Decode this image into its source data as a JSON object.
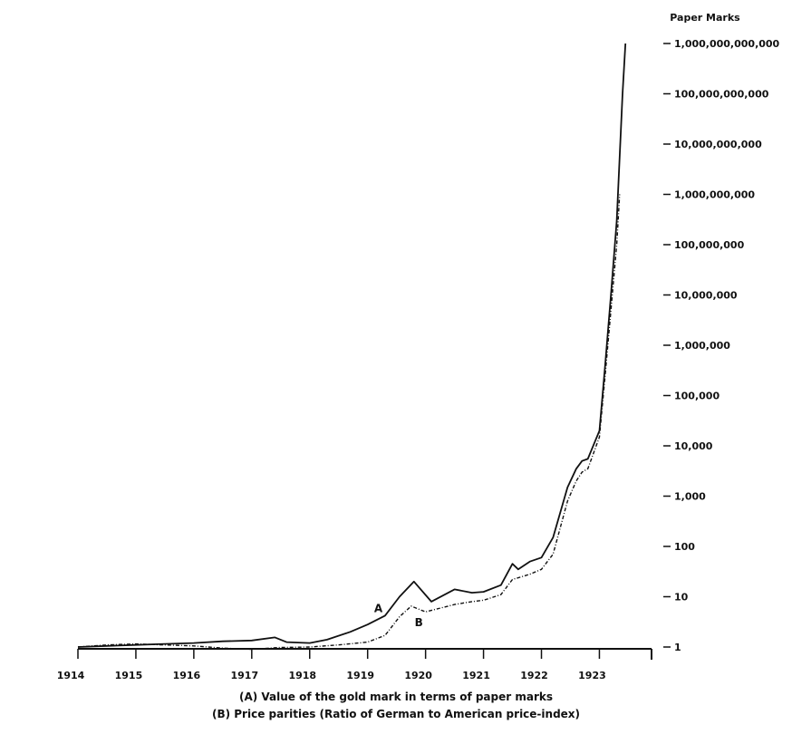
{
  "chart_data": {
    "type": "line",
    "y_axis_title": "Paper Marks",
    "y_scale": "log",
    "ylim": [
      1,
      1000000000000
    ],
    "xlim": [
      1914.0,
      1923.9
    ],
    "x_ticks": [
      "1914",
      "1915",
      "1916",
      "1917",
      "1918",
      "1919",
      "1920",
      "1921",
      "1922",
      "1923"
    ],
    "y_ticks": [
      {
        "value": 1,
        "label": "1"
      },
      {
        "value": 10,
        "label": "10"
      },
      {
        "value": 100,
        "label": "100"
      },
      {
        "value": 1000,
        "label": "1,000"
      },
      {
        "value": 10000,
        "label": "10,000"
      },
      {
        "value": 100000,
        "label": "100,000"
      },
      {
        "value": 1000000,
        "label": "1,000,000"
      },
      {
        "value": 10000000,
        "label": "10,000,000"
      },
      {
        "value": 100000000,
        "label": "100,000,000"
      },
      {
        "value": 1000000000,
        "label": "1,000,000,000"
      },
      {
        "value": 10000000000,
        "label": "10,000,000,000"
      },
      {
        "value": 100000000000,
        "label": "100,000,000,000"
      },
      {
        "value": 1000000000000,
        "label": "1,000,000,000,000"
      }
    ],
    "grid": false,
    "series": [
      {
        "name": "A",
        "line_style": "solid",
        "points": [
          [
            1914.0,
            1.0
          ],
          [
            1914.5,
            1.05
          ],
          [
            1915.0,
            1.1
          ],
          [
            1915.5,
            1.15
          ],
          [
            1916.0,
            1.2
          ],
          [
            1916.5,
            1.3
          ],
          [
            1917.0,
            1.35
          ],
          [
            1917.4,
            1.55
          ],
          [
            1917.6,
            1.25
          ],
          [
            1918.0,
            1.2
          ],
          [
            1918.3,
            1.4
          ],
          [
            1918.7,
            2.0
          ],
          [
            1919.0,
            2.8
          ],
          [
            1919.3,
            4.2
          ],
          [
            1919.55,
            10
          ],
          [
            1919.8,
            20
          ],
          [
            1920.1,
            8
          ],
          [
            1920.5,
            14
          ],
          [
            1920.8,
            12
          ],
          [
            1921.0,
            12.5
          ],
          [
            1921.3,
            17
          ],
          [
            1921.5,
            45
          ],
          [
            1921.6,
            35
          ],
          [
            1921.8,
            50
          ],
          [
            1922.0,
            60
          ],
          [
            1922.2,
            150
          ],
          [
            1922.45,
            1500
          ],
          [
            1922.6,
            3500
          ],
          [
            1922.7,
            5000
          ],
          [
            1922.8,
            5500
          ],
          [
            1923.0,
            20000
          ],
          [
            1923.1,
            400000
          ],
          [
            1923.2,
            10000000
          ],
          [
            1923.3,
            300000000
          ],
          [
            1923.4,
            100000000000
          ],
          [
            1923.45,
            1000000000000
          ]
        ]
      },
      {
        "name": "B",
        "line_style": "dashed",
        "points": [
          [
            1914.0,
            1.0
          ],
          [
            1914.5,
            1.1
          ],
          [
            1915.0,
            1.15
          ],
          [
            1915.5,
            1.1
          ],
          [
            1916.0,
            1.05
          ],
          [
            1916.5,
            0.95
          ],
          [
            1917.0,
            0.9
          ],
          [
            1917.5,
            0.98
          ],
          [
            1918.0,
            1.0
          ],
          [
            1918.5,
            1.1
          ],
          [
            1919.0,
            1.25
          ],
          [
            1919.3,
            1.7
          ],
          [
            1919.55,
            4
          ],
          [
            1919.75,
            6.5
          ],
          [
            1920.0,
            5
          ],
          [
            1920.5,
            7
          ],
          [
            1920.8,
            8
          ],
          [
            1921.0,
            8.5
          ],
          [
            1921.3,
            11
          ],
          [
            1921.5,
            22
          ],
          [
            1921.8,
            28
          ],
          [
            1922.0,
            35
          ],
          [
            1922.2,
            70
          ],
          [
            1922.45,
            800
          ],
          [
            1922.6,
            2000
          ],
          [
            1922.7,
            3000
          ],
          [
            1922.8,
            3500
          ],
          [
            1923.0,
            15000
          ],
          [
            1923.1,
            250000
          ],
          [
            1923.2,
            5000000
          ],
          [
            1923.3,
            100000000
          ],
          [
            1923.35,
            1000000000
          ]
        ]
      }
    ],
    "captions": [
      "(A) Value of the gold mark in terms of paper marks",
      "(B) Price parities (Ratio of German to American price-index)"
    ]
  }
}
